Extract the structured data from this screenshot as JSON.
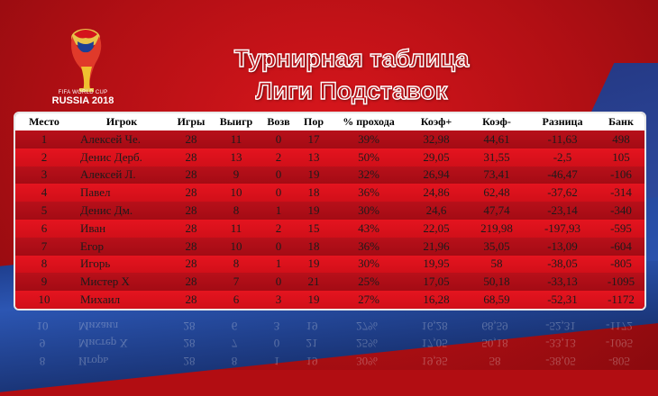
{
  "logo": {
    "line1": "FIFA WORLD CUP",
    "line2": "RUSSIA 2018"
  },
  "title": {
    "line1": "Турнирная таблица",
    "line2": "Лиги Подставок"
  },
  "table": {
    "headers": [
      "Место",
      "Игрок",
      "Игры",
      "Выигр",
      "Возв",
      "Пор",
      "% прохода",
      "Коэф+",
      "Коэф-",
      "Разница",
      "Банк"
    ],
    "rows": [
      [
        "1",
        "Алексей Че.",
        "28",
        "11",
        "0",
        "17",
        "39%",
        "32,98",
        "44,61",
        "-11,63",
        "498"
      ],
      [
        "2",
        "Денис Дерб.",
        "28",
        "13",
        "2",
        "13",
        "50%",
        "29,05",
        "31,55",
        "-2,5",
        "105"
      ],
      [
        "3",
        "Алексей Л.",
        "28",
        "9",
        "0",
        "19",
        "32%",
        "26,94",
        "73,41",
        "-46,47",
        "-106"
      ],
      [
        "4",
        "Павел",
        "28",
        "10",
        "0",
        "18",
        "36%",
        "24,86",
        "62,48",
        "-37,62",
        "-314"
      ],
      [
        "5",
        "Денис Дм.",
        "28",
        "8",
        "1",
        "19",
        "30%",
        "24,6",
        "47,74",
        "-23,14",
        "-340"
      ],
      [
        "6",
        "Иван",
        "28",
        "11",
        "2",
        "15",
        "43%",
        "22,05",
        "219,98",
        "-197,93",
        "-595"
      ],
      [
        "7",
        "Егор",
        "28",
        "10",
        "0",
        "18",
        "36%",
        "21,96",
        "35,05",
        "-13,09",
        "-604"
      ],
      [
        "8",
        "Игорь",
        "28",
        "8",
        "1",
        "19",
        "30%",
        "19,95",
        "58",
        "-38,05",
        "-805"
      ],
      [
        "9",
        "Мистер Х",
        "28",
        "7",
        "0",
        "21",
        "25%",
        "17,05",
        "50,18",
        "-33,13",
        "-1095"
      ],
      [
        "10",
        "Михаил",
        "28",
        "6",
        "3",
        "19",
        "27%",
        "16,28",
        "68,59",
        "-52,31",
        "-1172"
      ]
    ]
  },
  "colors": {
    "background_red": "#b20d12",
    "row_dark": "#a40b14",
    "row_light": "#d10f19",
    "band_blue": "#2c56b3"
  }
}
